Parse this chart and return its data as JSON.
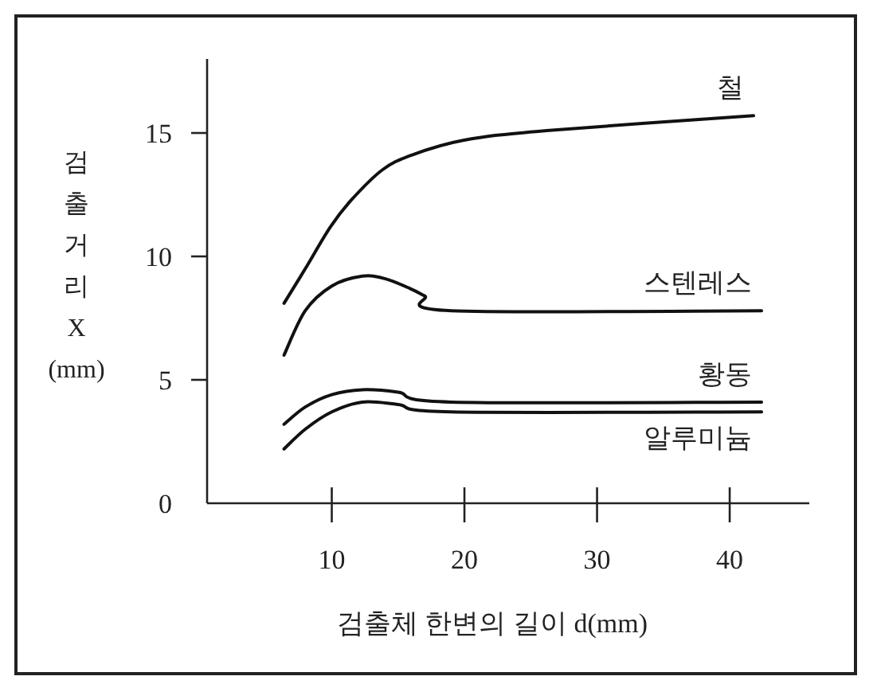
{
  "chart_data": {
    "type": "line",
    "xlabel": "검출체 한변의 길이 d(mm)",
    "ylabel": "검출거리 X (mm)",
    "xlim": [
      0.6,
      46
    ],
    "ylim": [
      0,
      18
    ],
    "xticks": [
      10,
      20,
      30,
      40
    ],
    "yticks": [
      0,
      5,
      10,
      15
    ],
    "grid": false,
    "marker": "none",
    "line_style": "solid",
    "series": [
      {
        "name": "철",
        "color": "#111111",
        "x": [
          6.4,
          8,
          9.9,
          11.5,
          13.8,
          16,
          19.9,
          26.2,
          41.8
        ],
        "values": [
          8.1,
          9.5,
          11.2,
          12.3,
          13.5,
          14.1,
          14.7,
          15.1,
          15.7
        ]
      },
      {
        "name": "스텐레스",
        "color": "#111111",
        "x": [
          6.4,
          8,
          10,
          12.3,
          14,
          15.9,
          17,
          19,
          42.4
        ],
        "values": [
          6.0,
          7.8,
          8.8,
          9.2,
          9.1,
          8.7,
          8.4,
          7.8,
          7.8
        ]
      },
      {
        "name": "황동",
        "color": "#111111",
        "x": [
          6.4,
          8,
          10,
          12.3,
          15,
          19,
          42.4
        ],
        "values": [
          3.2,
          3.9,
          4.4,
          4.6,
          4.5,
          4.1,
          4.1
        ]
      },
      {
        "name": "알루미늄",
        "color": "#111111",
        "x": [
          6.4,
          8,
          10,
          12.3,
          15,
          19,
          42.4
        ],
        "values": [
          2.2,
          3.0,
          3.7,
          4.1,
          4.0,
          3.7,
          3.7
        ]
      }
    ]
  }
}
